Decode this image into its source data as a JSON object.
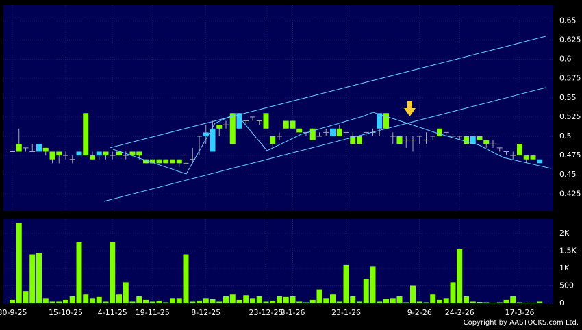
{
  "chart_data": {
    "type": "candlestick",
    "categories": [
      "30-9-25",
      null,
      null,
      null,
      null,
      null,
      null,
      null,
      "15-10-25",
      null,
      null,
      null,
      null,
      null,
      null,
      "4-11-25",
      null,
      null,
      null,
      null,
      null,
      "19-11-25",
      null,
      null,
      null,
      null,
      null,
      null,
      null,
      "8-12-25",
      null,
      null,
      null,
      null,
      null,
      null,
      null,
      null,
      "23-12-25",
      null,
      null,
      null,
      "8-1-26",
      null,
      null,
      null,
      null,
      null,
      null,
      null,
      "23-1-26",
      null,
      null,
      null,
      null,
      null,
      null,
      null,
      null,
      null,
      null,
      "9-2-26",
      null,
      null,
      null,
      null,
      null,
      "24-2-26",
      null,
      null,
      null,
      null,
      null,
      null,
      null,
      null,
      "17-3-26",
      null,
      null,
      null
    ],
    "open": [
      0.48,
      0.49,
      0.485,
      0.48,
      0.48,
      0.485,
      0.48,
      0.48,
      0.475,
      0.47,
      0.475,
      0.53,
      0.475,
      0.475,
      0.48,
      0.475,
      0.48,
      0.475,
      0.48,
      0.48,
      0.47,
      0.47,
      0.47,
      0.47,
      0.47,
      0.47,
      0.465,
      0.47,
      0.5,
      0.5,
      0.48,
      0.515,
      0.515,
      0.53,
      0.51,
      0.52,
      0.525,
      0.52,
      0.53,
      0.5,
      0.5,
      0.52,
      0.52,
      0.51,
      0.505,
      0.51,
      0.5,
      0.505,
      0.5,
      0.51,
      0.505,
      0.5,
      0.5,
      0.505,
      0.505,
      0.51,
      0.53,
      0.5,
      0.5,
      0.495,
      0.495,
      0.5,
      0.495,
      0.5,
      0.51,
      0.505,
      0.5,
      0.5,
      0.5,
      0.49,
      0.5,
      0.495,
      0.49,
      0.485,
      0.48,
      0.475,
      0.49,
      0.475,
      0.475,
      0.465
    ],
    "high": [
      0.48,
      0.51,
      0.485,
      0.49,
      0.49,
      0.485,
      0.48,
      0.48,
      0.48,
      0.475,
      0.48,
      0.53,
      0.48,
      0.48,
      0.48,
      0.48,
      0.48,
      0.48,
      0.48,
      0.48,
      0.47,
      0.47,
      0.47,
      0.47,
      0.47,
      0.47,
      0.475,
      0.485,
      0.5,
      0.515,
      0.52,
      0.515,
      0.52,
      0.53,
      0.53,
      0.52,
      0.525,
      0.52,
      0.53,
      0.5,
      0.505,
      0.52,
      0.52,
      0.51,
      0.505,
      0.51,
      0.505,
      0.51,
      0.51,
      0.515,
      0.505,
      0.505,
      0.5,
      0.505,
      0.51,
      0.53,
      0.53,
      0.505,
      0.5,
      0.5,
      0.5,
      0.5,
      0.505,
      0.5,
      0.51,
      0.505,
      0.5,
      0.5,
      0.5,
      0.5,
      0.5,
      0.495,
      0.495,
      0.485,
      0.48,
      0.48,
      0.49,
      0.475,
      0.475,
      0.47
    ],
    "low": [
      0.48,
      0.48,
      0.48,
      0.48,
      0.48,
      0.475,
      0.465,
      0.465,
      0.47,
      0.465,
      0.465,
      0.475,
      0.47,
      0.47,
      0.47,
      0.47,
      0.475,
      0.47,
      0.475,
      0.47,
      0.465,
      0.465,
      0.465,
      0.465,
      0.465,
      0.46,
      0.46,
      0.465,
      0.475,
      0.49,
      0.48,
      0.5,
      0.51,
      0.49,
      0.51,
      0.515,
      0.52,
      0.515,
      0.51,
      0.485,
      0.495,
      0.51,
      0.51,
      0.505,
      0.5,
      0.495,
      0.5,
      0.5,
      0.5,
      0.5,
      0.5,
      0.49,
      0.49,
      0.5,
      0.5,
      0.5,
      0.51,
      0.49,
      0.49,
      0.485,
      0.48,
      0.49,
      0.49,
      0.495,
      0.5,
      0.5,
      0.495,
      0.495,
      0.49,
      0.49,
      0.495,
      0.485,
      0.485,
      0.48,
      0.475,
      0.47,
      0.475,
      0.465,
      0.47,
      0.465
    ],
    "close": [
      0.48,
      0.48,
      0.485,
      0.48,
      0.49,
      0.48,
      0.47,
      0.475,
      0.475,
      0.47,
      0.48,
      0.475,
      0.47,
      0.48,
      0.475,
      0.475,
      0.475,
      0.475,
      0.475,
      0.475,
      0.465,
      0.465,
      0.465,
      0.465,
      0.465,
      0.465,
      0.465,
      0.47,
      0.5,
      0.505,
      0.51,
      0.51,
      0.515,
      0.49,
      0.53,
      0.52,
      0.525,
      0.52,
      0.51,
      0.49,
      0.5,
      0.51,
      0.51,
      0.505,
      0.505,
      0.495,
      0.5,
      0.505,
      0.51,
      0.5,
      0.505,
      0.49,
      0.49,
      0.505,
      0.505,
      0.53,
      0.51,
      0.5,
      0.49,
      0.495,
      0.495,
      0.5,
      0.495,
      0.5,
      0.5,
      0.505,
      0.5,
      0.5,
      0.49,
      0.5,
      0.495,
      0.49,
      0.49,
      0.485,
      0.48,
      0.475,
      0.475,
      0.47,
      0.47,
      0.47
    ],
    "ylim": [
      0.403,
      0.67
    ],
    "yticks": [
      0.425,
      0.45,
      0.475,
      0.5,
      0.525,
      0.55,
      0.575,
      0.6,
      0.625,
      0.65
    ],
    "up_color": "#33ccff",
    "down_color": "#80ff00",
    "grid": true,
    "volume": {
      "values": [
        100,
        2300,
        350,
        1400,
        1450,
        150,
        50,
        50,
        100,
        200,
        1750,
        250,
        150,
        180,
        50,
        1750,
        250,
        600,
        50,
        200,
        100,
        50,
        80,
        30,
        150,
        150,
        1400,
        50,
        80,
        150,
        120,
        50,
        200,
        250,
        100,
        230,
        150,
        200,
        50,
        80,
        200,
        180,
        200,
        50,
        30,
        100,
        400,
        150,
        250,
        50,
        1100,
        200,
        50,
        700,
        1050,
        50,
        130,
        150,
        200,
        30,
        500,
        50,
        30,
        250,
        100,
        150,
        600,
        1550,
        200,
        50,
        40,
        30,
        20,
        30,
        100,
        200,
        30,
        20,
        20,
        50
      ],
      "color": "#80ff00",
      "ylim": [
        0,
        2410
      ],
      "yticks": [
        0,
        500,
        {
          "value": 1000,
          "label": "1K"
        },
        {
          "value": 1500,
          "label": "1.5K"
        },
        {
          "value": 2000,
          "label": "2K"
        }
      ]
    },
    "copyright": "Copyright by AASTOCKS.com Ltd."
  }
}
